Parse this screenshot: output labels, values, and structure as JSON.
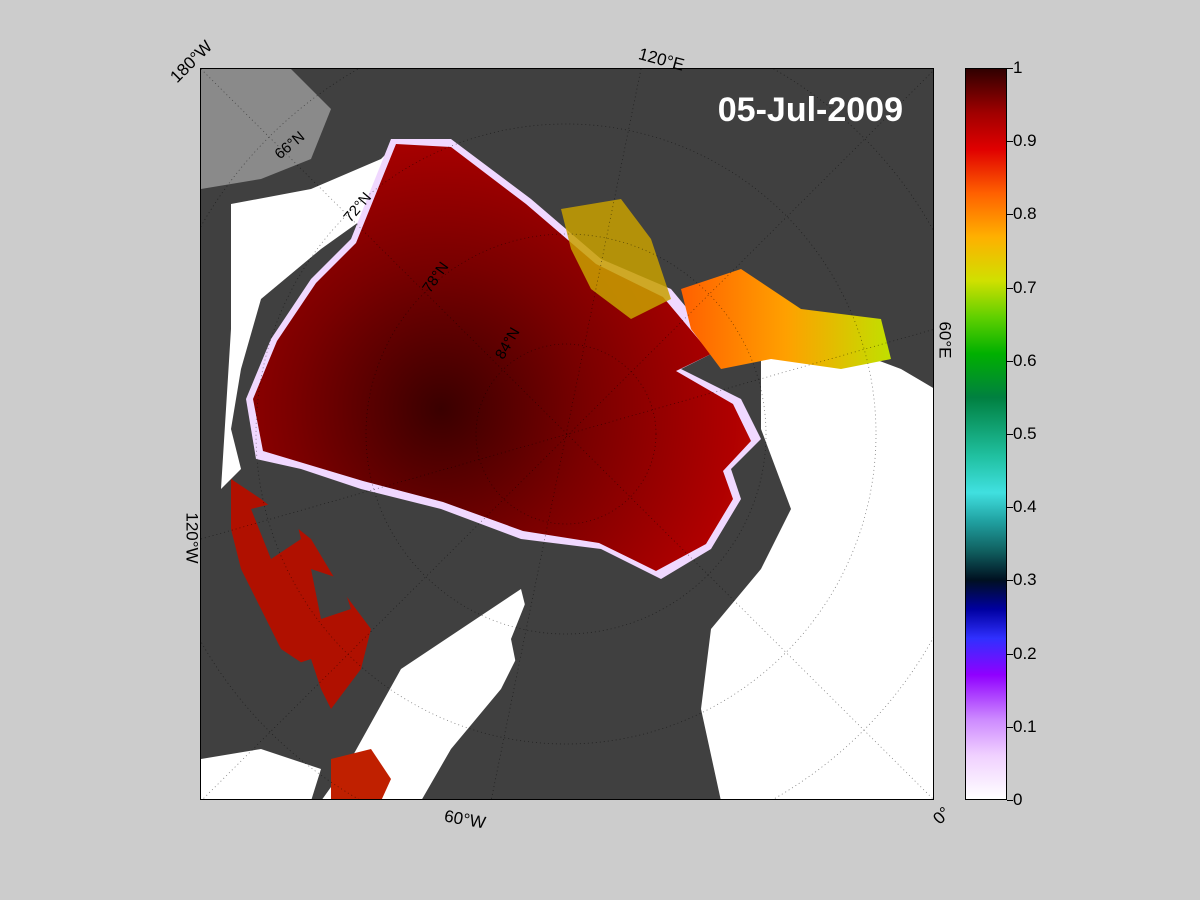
{
  "map": {
    "date": "05-Jul-2009",
    "lon_labels": [
      "180°W",
      "120°E",
      "60°E",
      "0°",
      "60°W",
      "120°W"
    ],
    "lat_labels": [
      "66°N",
      "72°N",
      "78°N",
      "84°N"
    ],
    "colors": {
      "land": "#404040",
      "land_light": "#8a8a8a",
      "water": "#ffffff",
      "ice_core": "#3a0000"
    }
  },
  "colorbar": {
    "min": 0,
    "max": 1,
    "ticks": [
      "0",
      "0.1",
      "0.2",
      "0.3",
      "0.4",
      "0.5",
      "0.6",
      "0.7",
      "0.8",
      "0.9",
      "1"
    ]
  }
}
